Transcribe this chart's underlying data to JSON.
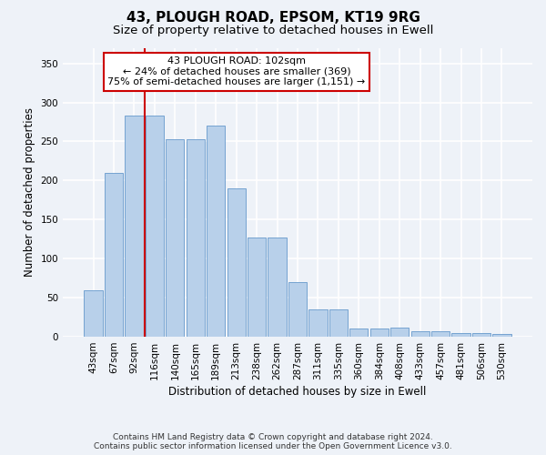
{
  "title": "43, PLOUGH ROAD, EPSOM, KT19 9RG",
  "subtitle": "Size of property relative to detached houses in Ewell",
  "xlabel": "Distribution of detached houses by size in Ewell",
  "ylabel": "Number of detached properties",
  "footer_line1": "Contains HM Land Registry data © Crown copyright and database right 2024.",
  "footer_line2": "Contains public sector information licensed under the Open Government Licence v3.0.",
  "bar_labels": [
    "43sqm",
    "67sqm",
    "92sqm",
    "116sqm",
    "140sqm",
    "165sqm",
    "189sqm",
    "213sqm",
    "238sqm",
    "262sqm",
    "287sqm",
    "311sqm",
    "335sqm",
    "360sqm",
    "384sqm",
    "408sqm",
    "433sqm",
    "457sqm",
    "481sqm",
    "506sqm",
    "530sqm"
  ],
  "bar_values": [
    60,
    210,
    283,
    283,
    253,
    253,
    270,
    190,
    127,
    127,
    70,
    35,
    35,
    10,
    10,
    12,
    7,
    7,
    5,
    5,
    4
  ],
  "bar_color": "#b8d0ea",
  "bar_edge_color": "#6699cc",
  "annotation_title": "43 PLOUGH ROAD: 102sqm",
  "annotation_line2": "← 24% of detached houses are smaller (369)",
  "annotation_line3": "75% of semi-detached houses are larger (1,151) →",
  "vline_x": 2.5,
  "ylim": [
    0,
    370
  ],
  "yticks": [
    0,
    50,
    100,
    150,
    200,
    250,
    300,
    350
  ],
  "bg_color": "#eef2f8",
  "grid_color": "#ffffff",
  "annotation_box_color": "#ffffff",
  "annotation_box_edge": "#cc0000",
  "vline_color": "#cc0000",
  "title_fontsize": 11,
  "subtitle_fontsize": 9.5,
  "axis_label_fontsize": 8.5,
  "tick_fontsize": 7.5,
  "annotation_fontsize": 8,
  "footer_fontsize": 6.5
}
